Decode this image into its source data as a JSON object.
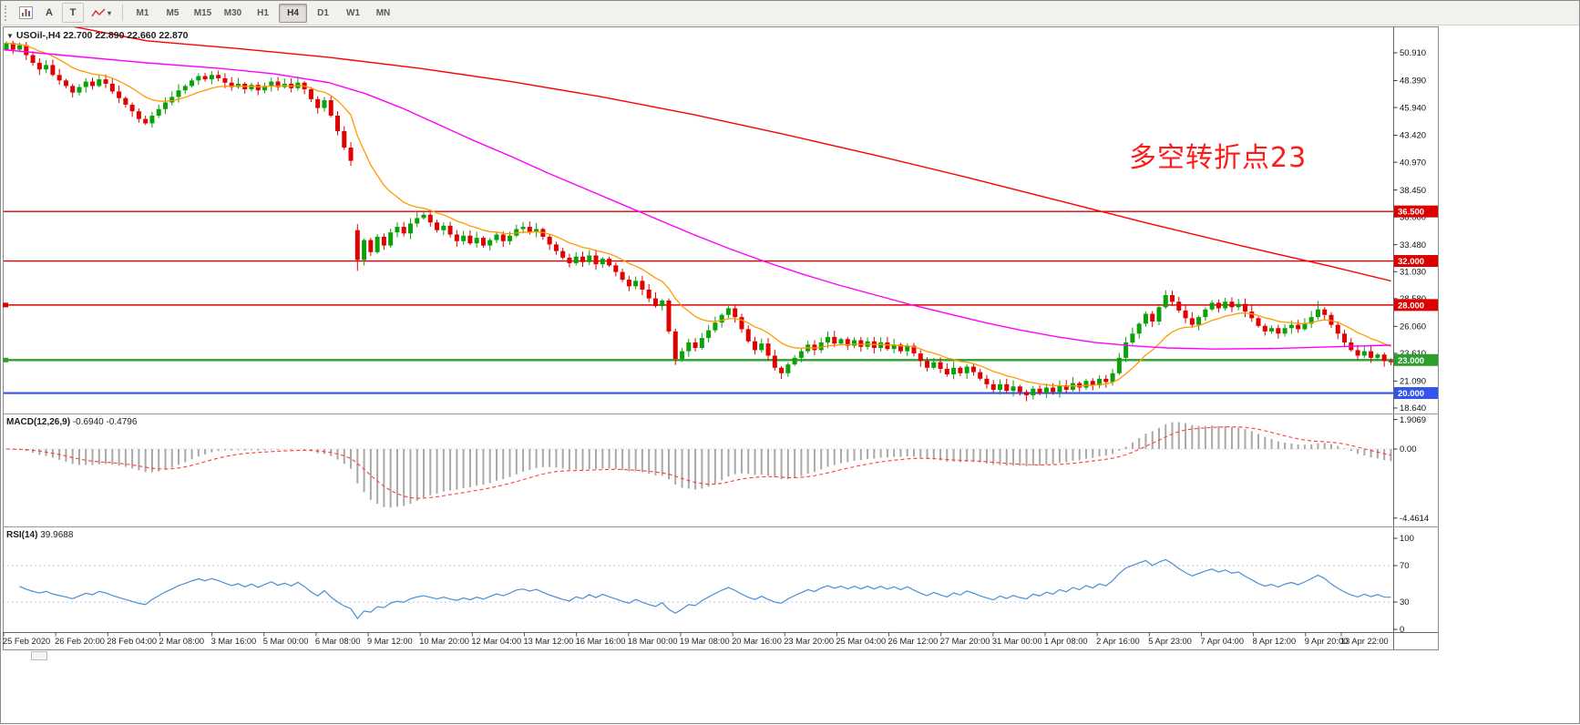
{
  "toolbar": {
    "buttons": {
      "auto_label": "A",
      "text_label": "T"
    },
    "timeframes": [
      "M1",
      "M5",
      "M15",
      "M30",
      "H1",
      "H4",
      "D1",
      "W1",
      "MN"
    ],
    "active_timeframe": "H4"
  },
  "chart": {
    "symbol_caret": "▼",
    "symbol": "USOil-,H4",
    "ohlc": "22.700 22.890 22.660 22.870",
    "annotation": {
      "text": "多空转折点23",
      "color": "#ff1a1a"
    }
  },
  "chart_data": {
    "type": "candlestick",
    "symbol": "USOil-",
    "timeframe": "H4",
    "open": "22.700",
    "high": "22.890",
    "low": "22.660",
    "close": "22.870",
    "colors": {
      "up": "#0aa10a",
      "down": "#e00000",
      "ma_fast": "#ff9a00",
      "ma_mid": "#ff00ff",
      "ma_slow": "#ff0000",
      "macd_hist": "#a8a8a8",
      "macd_signal": "#ff3b3b",
      "rsi": "#4a8fd4"
    },
    "closes": [
      51.8,
      51.2,
      51.6,
      50.7,
      50.0,
      49.4,
      49.8,
      48.9,
      48.4,
      47.9,
      47.3,
      47.8,
      48.3,
      47.9,
      48.5,
      48.1,
      47.4,
      46.8,
      46.2,
      45.6,
      44.9,
      44.5,
      45.2,
      45.8,
      46.4,
      46.9,
      47.5,
      47.9,
      48.4,
      48.8,
      48.5,
      48.9,
      48.6,
      48.2,
      47.8,
      48.1,
      47.6,
      48.0,
      47.5,
      47.9,
      48.3,
      47.8,
      48.1,
      47.7,
      48.2,
      47.6,
      46.7,
      45.9,
      46.6,
      45.2,
      43.8,
      42.3,
      41.1,
      32.1,
      33.9,
      32.8,
      34.2,
      33.4,
      34.6,
      35.1,
      34.5,
      35.4,
      35.9,
      36.2,
      35.5,
      34.8,
      35.2,
      34.4,
      33.8,
      34.3,
      33.6,
      34.1,
      33.4,
      33.9,
      34.4,
      33.8,
      34.3,
      34.9,
      35.1,
      34.6,
      34.9,
      34.2,
      33.5,
      32.9,
      32.3,
      31.8,
      32.4,
      31.9,
      32.5,
      31.7,
      32.2,
      31.6,
      31.0,
      30.3,
      29.7,
      30.2,
      29.4,
      28.6,
      27.9,
      28.4,
      25.6,
      23.1,
      23.8,
      24.6,
      24.1,
      25.0,
      25.7,
      26.4,
      27.1,
      27.7,
      26.9,
      25.8,
      24.7,
      23.9,
      24.5,
      23.4,
      22.3,
      21.8,
      22.6,
      23.2,
      23.8,
      24.4,
      23.9,
      24.6,
      25.1,
      24.5,
      24.9,
      24.3,
      24.8,
      24.2,
      24.7,
      24.1,
      24.6,
      24.0,
      24.4,
      23.8,
      24.3,
      23.6,
      22.9,
      22.3,
      22.8,
      22.2,
      21.7,
      22.3,
      21.8,
      22.4,
      21.9,
      21.3,
      20.8,
      20.3,
      20.8,
      20.2,
      20.6,
      20.1,
      19.8,
      20.4,
      20.0,
      20.5,
      20.1,
      20.7,
      20.3,
      20.9,
      20.5,
      21.1,
      20.7,
      21.3,
      21.0,
      21.8,
      23.2,
      24.6,
      25.4,
      26.3,
      27.2,
      26.5,
      27.8,
      28.9,
      28.3,
      27.5,
      26.8,
      26.2,
      26.9,
      27.6,
      28.2,
      27.7,
      28.3,
      27.8,
      28.1,
      27.4,
      26.8,
      26.1,
      25.6,
      25.9,
      25.4,
      25.9,
      26.2,
      25.8,
      26.3,
      26.9,
      27.6,
      27.1,
      26.2,
      25.4,
      24.6,
      23.9,
      23.4,
      23.8,
      23.2,
      23.5,
      22.9,
      22.87
    ],
    "open_overrides": {
      "0": 51.2,
      "53": 34.8
    },
    "extremes": {
      "53": {
        "low": 31.1
      },
      "63": {
        "high": 36.45
      },
      "101": {
        "low": 22.55
      },
      "154": {
        "low": 19.25
      },
      "175": {
        "high": 29.35
      },
      "198": {
        "high": 28.35
      }
    },
    "ma_fast_period": 13,
    "ma_mid_points": [
      [
        2,
        51.2
      ],
      [
        80,
        50.6
      ],
      [
        160,
        50.0
      ],
      [
        240,
        49.5
      ],
      [
        300,
        49.0
      ],
      [
        360,
        48.2
      ],
      [
        400,
        47.2
      ],
      [
        440,
        45.9
      ],
      [
        480,
        44.4
      ],
      [
        520,
        42.9
      ],
      [
        560,
        41.5
      ],
      [
        600,
        40.0
      ],
      [
        640,
        38.6
      ],
      [
        680,
        37.2
      ],
      [
        720,
        35.8
      ],
      [
        760,
        34.4
      ],
      [
        800,
        33.1
      ],
      [
        840,
        31.9
      ],
      [
        880,
        30.8
      ],
      [
        920,
        29.8
      ],
      [
        960,
        28.9
      ],
      [
        1000,
        28.0
      ],
      [
        1040,
        27.2
      ],
      [
        1080,
        26.4
      ],
      [
        1120,
        25.7
      ],
      [
        1160,
        25.1
      ],
      [
        1200,
        24.6
      ],
      [
        1240,
        24.3
      ],
      [
        1280,
        24.1
      ],
      [
        1330,
        24.0
      ],
      [
        1400,
        24.05
      ],
      [
        1460,
        24.2
      ],
      [
        1525,
        24.35
      ]
    ],
    "ma_slow_points": [
      [
        60,
        53.6
      ],
      [
        160,
        52.0
      ],
      [
        260,
        51.3
      ],
      [
        360,
        50.5
      ],
      [
        460,
        49.5
      ],
      [
        560,
        48.3
      ],
      [
        660,
        46.9
      ],
      [
        760,
        45.3
      ],
      [
        860,
        43.5
      ],
      [
        960,
        41.6
      ],
      [
        1060,
        39.6
      ],
      [
        1160,
        37.5
      ],
      [
        1260,
        35.4
      ],
      [
        1360,
        33.4
      ],
      [
        1460,
        31.5
      ],
      [
        1525,
        30.2
      ]
    ],
    "hlines": [
      {
        "price": 36.5,
        "label": "36.500",
        "color": "#dd0000",
        "width": 1.4
      },
      {
        "price": 32.0,
        "label": "32.000",
        "color": "#dd0000",
        "width": 1.4
      },
      {
        "price": 28.0,
        "label": "28.000",
        "color": "#dd0000",
        "width": 1.4
      },
      {
        "price": 23.0,
        "label": "23.000",
        "color": "#2ca02c",
        "width": 2.4
      },
      {
        "price": 20.0,
        "label": "20.000",
        "color": "#3355ee",
        "width": 2.2
      }
    ],
    "price_ticks": [
      "50.910",
      "48.390",
      "45.940",
      "43.420",
      "40.970",
      "38.450",
      "36.000",
      "33.480",
      "31.030",
      "28.580",
      "26.060",
      "23.610",
      "21.090",
      "18.640"
    ],
    "time_labels": [
      "25 Feb 2020",
      "26 Feb 20:00",
      "28 Feb 04:00",
      "2 Mar 08:00",
      "3 Mar 16:00",
      "5 Mar 00:00",
      "6 Mar 08:00",
      "9 Mar 12:00",
      "10 Mar 20:00",
      "12 Mar 04:00",
      "13 Mar 12:00",
      "16 Mar 16:00",
      "18 Mar 00:00",
      "19 Mar 08:00",
      "20 Mar 16:00",
      "23 Mar 20:00",
      "25 Mar 04:00",
      "26 Mar 12:00",
      "27 Mar 20:00",
      "31 Mar 00:00",
      "1 Apr 08:00",
      "2 Apr 16:00",
      "5 Apr 23:00",
      "7 Apr 04:00",
      "8 Apr 12:00",
      "9 Apr 20:00",
      "13 Apr 22:00"
    ],
    "macd": {
      "label": "MACD(12,26,9)",
      "values": "-0.6940 -0.4796",
      "fast": 12,
      "slow": 26,
      "signal": 9,
      "scale": [
        {
          "text": "1.9069",
          "v": 1.9069
        },
        {
          "text": "0.00",
          "v": 0
        },
        {
          "text": "-4.4614",
          "v": -4.4614
        }
      ]
    },
    "rsi": {
      "label": "RSI(14)",
      "value": "39.9688",
      "period": 14,
      "scale": [
        {
          "text": "100",
          "v": 100
        },
        {
          "text": "70",
          "v": 70
        },
        {
          "text": "30",
          "v": 30
        },
        {
          "text": "0",
          "v": 0
        }
      ],
      "levels": [
        70,
        30
      ]
    }
  }
}
